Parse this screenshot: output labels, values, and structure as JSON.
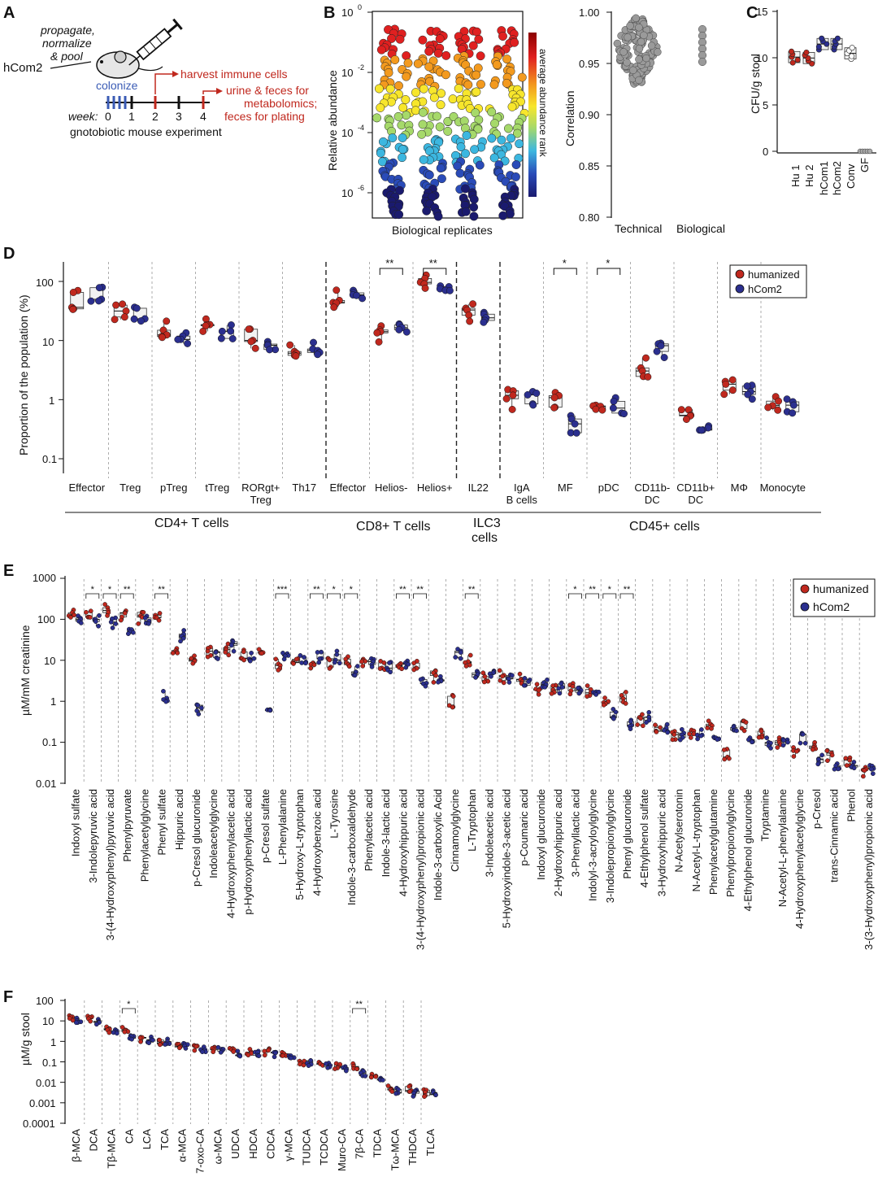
{
  "panels": {
    "A": "A",
    "B": "B",
    "C": "C",
    "D": "D",
    "E": "E",
    "F": "F"
  },
  "colors": {
    "humanized": "#c0281e",
    "hcom2": "#2b2f8f",
    "gray": "#9a9a9a"
  },
  "panelA": {
    "strain": "hCom2",
    "prep": [
      "propagate,",
      "normalize",
      "& pool"
    ],
    "colonize": "colonize",
    "harvest": "harvest immune cells",
    "urine": [
      "urine & feces for",
      "metabolomics;",
      "feces for plating"
    ],
    "week_label": "week:",
    "weeks": [
      "0",
      "1",
      "2",
      "3",
      "4"
    ],
    "caption": "gnotobiotic mouse experiment"
  },
  "panelB": {
    "ylabel": "Relative abundance",
    "xlabel": "Biological replicates",
    "colorbar_label": "average abundance rank",
    "yticks": [
      "10",
      "10",
      "10",
      "10"
    ],
    "yexp": [
      "0",
      "-2",
      "-4",
      "-6"
    ],
    "corr_ylabel": "Correlation",
    "corr_yticks": [
      "1.00",
      "0.95",
      "0.90",
      "0.85",
      "0.80"
    ],
    "corr_groups": [
      "Technical",
      "Biological"
    ]
  },
  "panelC": {
    "ylabel": "CFU/g stool",
    "yticks": [
      "15",
      "10",
      "5",
      "0"
    ],
    "groups": [
      "Hu 1",
      "Hu 2",
      "hCom1",
      "hCom2",
      "Conv",
      "GF"
    ],
    "chart_data": {
      "type": "box",
      "categories": [
        "Hu 1",
        "Hu 2",
        "hCom1",
        "hCom2",
        "Conv",
        "GF"
      ],
      "values": [
        10.1,
        10.0,
        11.5,
        11.5,
        10.5,
        0.0
      ],
      "ylim": [
        0,
        15
      ]
    }
  },
  "panelD": {
    "ylabel": "Proportion of the population (%)",
    "yticks": [
      "100",
      "10",
      "1",
      "0.1"
    ],
    "legend": [
      "humanized",
      "hCom2"
    ],
    "categories": [
      "Effector",
      "Treg",
      "pTreg",
      "tTreg",
      "RORgt+ Treg",
      "Th17",
      "Effector",
      "Helios-",
      "Helios+",
      "IL22",
      "IgA B cells",
      "MF",
      "pDC",
      "CD11b- DC",
      "CD11b+ DC",
      "MΦ",
      "Monocyte"
    ],
    "cat_lines": [
      [
        "Effector"
      ],
      [
        "Treg"
      ],
      [
        "pTreg"
      ],
      [
        "tTreg"
      ],
      [
        "RORgt+",
        "Treg"
      ],
      [
        "Th17"
      ],
      [
        "Effector"
      ],
      [
        "Helios-"
      ],
      [
        "Helios+"
      ],
      [
        "IL22"
      ],
      [
        "IgA",
        "B cells"
      ],
      [
        "MF"
      ],
      [
        "pDC"
      ],
      [
        "CD11b-",
        "DC"
      ],
      [
        "CD11b+",
        "DC"
      ],
      [
        "MΦ"
      ],
      [
        "Monocyte"
      ]
    ],
    "groups": [
      "CD4+ T cells",
      "CD8+ T cells",
      "ILC3",
      "cells",
      "CD45+ cells"
    ],
    "sig": [
      "**",
      "**",
      "*",
      "*"
    ],
    "chart_data": {
      "type": "box",
      "categories": [
        "Effector",
        "Treg",
        "pTreg",
        "tTreg",
        "RORgt+ Treg",
        "Th17",
        "Effector",
        "Helios-",
        "Helios+",
        "IL22",
        "IgA B cells",
        "MF",
        "pDC",
        "CD11b- DC",
        "CD11b+ DC",
        "MΦ",
        "Monocyte"
      ],
      "series": [
        {
          "name": "humanized",
          "values": [
            48,
            32,
            15,
            16,
            11,
            7,
            48,
            12,
            90,
            28,
            1.0,
            1.0,
            0.8,
            3.5,
            0.5,
            1.6,
            0.9
          ]
        },
        {
          "name": "hCom2",
          "values": [
            58,
            29,
            12,
            15,
            9.5,
            7.5,
            57,
            18,
            82,
            27,
            1.1,
            0.38,
            0.8,
            6.5,
            0.3,
            1.4,
            0.75
          ]
        }
      ],
      "ylim": [
        0.05,
        150
      ]
    }
  },
  "panelE": {
    "ylabel": "µM/mM creatinine",
    "yticks": [
      "1000",
      "100",
      "10",
      "1",
      "0.1",
      "0.01"
    ],
    "legend": [
      "humanized",
      "hCom2"
    ],
    "labels": [
      "Indoxyl sulfate",
      "3-Indolepyruvic acid",
      "3-(4-Hydroxyphenyl)pyruvic acid",
      "Phenylpyruvate",
      "Phenylacetylglycine",
      "Phenyl sulfate",
      "Hippuric acid",
      "p-Cresol glucuronide",
      "Indoleacetylglycine",
      "4-Hydroxyphenylacetic acid",
      "p-Hydroxyphenyllactic acid",
      "p-Cresol sulfate",
      "L-Phenylalanine",
      "5-Hydroxy-L-tryptophan",
      "4-Hydroxybenzoic acid",
      "L-Tyrosine",
      "Indole-3-carboxaldehyde",
      "Phenylacetic acid",
      "Indole-3-lactic acid",
      "4-Hydroxyhippuric acid",
      "3-(4-Hydroxyphenyl)propionic acid",
      "Indole-3-carboxylic Acid",
      "Cinnamoylglycine",
      "L-Tryptophan",
      "3-Indoleacetic acid",
      "5-Hydroxyindole-3-acetic acid",
      "p-Coumaric acid",
      "Indoxyl glucuronide",
      "2-Hydroxyhippuric acid",
      "3-Phenyllactic acid",
      "Indolyl-3-acryloylglycine",
      "3-Indolepropionylglycine",
      "Phenyl glucuronide",
      "4-Ethylphenol sulfate",
      "3-Hydroxyhippuric acid",
      "N-Acetylserotonin",
      "N-Acetyl-L-tryptophan",
      "Phenylacetylglutamine",
      "Phenylpropionylglycine",
      "4-Ethylphenol glucuronide",
      "Tryptamine",
      "N-Acetyl-L-phenylalanine",
      "4-Hydroxyphenylacetylglycine",
      "p-Cresol",
      "trans-Cinnamic acid",
      "Phenol",
      "3-(3-Hydroxyphenyl)propionic acid"
    ],
    "sig": [
      {
        "i": 1,
        "t": "*"
      },
      {
        "i": 2,
        "t": "*"
      },
      {
        "i": 3,
        "t": "**"
      },
      {
        "i": 5,
        "t": "**"
      },
      {
        "i": 12,
        "t": "***"
      },
      {
        "i": 14,
        "t": "**"
      },
      {
        "i": 15,
        "t": "*"
      },
      {
        "i": 16,
        "t": "*"
      },
      {
        "i": 19,
        "t": "**"
      },
      {
        "i": 20,
        "t": "**"
      },
      {
        "i": 23,
        "t": "**"
      },
      {
        "i": 29,
        "t": "*"
      },
      {
        "i": 30,
        "t": "**"
      },
      {
        "i": 31,
        "t": "*"
      },
      {
        "i": 32,
        "t": "**"
      }
    ],
    "chart_data": {
      "type": "box",
      "categories": [
        "Indoxyl sulfate",
        "3-Indolepyruvic acid",
        "3-(4-Hydroxyphenyl)pyruvic acid",
        "Phenylpyruvate",
        "Phenylacetylglycine",
        "Phenyl sulfate",
        "Hippuric acid",
        "p-Cresol glucuronide",
        "Indoleacetylglycine",
        "4-Hydroxyphenylacetic acid",
        "p-Hydroxyphenyllactic acid",
        "p-Cresol sulfate",
        "L-Phenylalanine",
        "5-Hydroxy-L-tryptophan",
        "4-Hydroxybenzoic acid",
        "L-Tyrosine",
        "Indole-3-carboxaldehyde",
        "Phenylacetic acid",
        "Indole-3-lactic acid",
        "4-Hydroxyhippuric acid",
        "3-(4-Hydroxyphenyl)propionic acid",
        "Indole-3-carboxylic Acid",
        "Cinnamoylglycine",
        "L-Tryptophan",
        "3-Indoleacetic acid",
        "5-Hydroxyindole-3-acetic acid",
        "p-Coumaric acid",
        "Indoxyl glucuronide",
        "2-Hydroxyhippuric acid",
        "3-Phenyllactic acid",
        "Indolyl-3-acryloylglycine",
        "3-Indolepropionylglycine",
        "Phenyl glucuronide",
        "4-Ethylphenol sulfate",
        "3-Hydroxyhippuric acid",
        "N-Acetylserotonin",
        "N-Acetyl-L-tryptophan",
        "Phenylacetylglutamine",
        "Phenylpropionylglycine",
        "4-Ethylphenol glucuronide",
        "Tryptamine",
        "N-Acetyl-L-phenylalanine",
        "4-Hydroxyphenylacetylglycine",
        "p-Cresol",
        "trans-Cinnamic acid",
        "Phenol",
        "3-(3-Hydroxyphenyl)propionic acid"
      ],
      "series": [
        {
          "name": "humanized",
          "values": [
            150,
            150,
            170,
            120,
            110,
            100,
            20,
            10,
            17,
            18,
            14,
            15,
            8,
            11,
            9,
            8,
            10,
            8,
            8,
            6,
            7,
            4,
            1,
            10,
            4,
            4,
            3.5,
            2,
            1.8,
            2,
            1.8,
            1,
            1.2,
            0.35,
            0.25,
            0.15,
            0.15,
            0.25,
            0.05,
            0.25,
            0.18,
            0.1,
            0.06,
            0.08,
            0.05,
            0.03,
            0.02
          ]
        },
        {
          "name": "hCom2",
          "values": [
            100,
            95,
            80,
            60,
            90,
            1.3,
            40,
            0.6,
            15,
            22,
            13,
            0.5,
            15,
            11,
            12,
            12,
            6,
            9,
            7,
            8,
            3,
            4,
            15,
            5,
            4.5,
            3.5,
            3,
            2.5,
            2,
            2,
            1.5,
            0.5,
            0.25,
            0.4,
            0.2,
            0.15,
            0.15,
            0.15,
            0.2,
            0.1,
            0.1,
            0.1,
            0.12,
            0.04,
            0.03,
            0.03,
            0.02
          ]
        }
      ],
      "ylim": [
        0.01,
        1000
      ]
    }
  },
  "panelF": {
    "ylabel": "µM/g stool",
    "yticks": [
      "100",
      "10",
      "1",
      "0.1",
      "0.01",
      "0.001",
      "0.0001"
    ],
    "labels": [
      "β-MCA",
      "DCA",
      "Tβ-MCA",
      "CA",
      "LCA",
      "TCA",
      "α-MCA",
      "7-oxo-CA",
      "ω-MCA",
      "UDCA",
      "HDCA",
      "CDCA",
      "γ-MCA",
      "TUDCA",
      "TCDCA",
      "Muro-CA",
      "7β-CA",
      "TDCA",
      "Tω-MCA",
      "THDCA",
      "TLCA"
    ],
    "sig": [
      {
        "i": 3,
        "t": "*"
      },
      {
        "i": 16,
        "t": "**"
      }
    ],
    "chart_data": {
      "type": "box",
      "categories": [
        "β-MCA",
        "DCA",
        "Tβ-MCA",
        "CA",
        "LCA",
        "TCA",
        "α-MCA",
        "7-oxo-CA",
        "ω-MCA",
        "UDCA",
        "HDCA",
        "CDCA",
        "γ-MCA",
        "TUDCA",
        "TCDCA",
        "Muro-CA",
        "7β-CA",
        "TDCA",
        "Tω-MCA",
        "THDCA",
        "TLCA"
      ],
      "series": [
        {
          "name": "humanized",
          "values": [
            15,
            12,
            4,
            4,
            1.3,
            1,
            0.7,
            0.5,
            0.4,
            0.4,
            0.3,
            0.3,
            0.2,
            0.1,
            0.08,
            0.06,
            0.06,
            0.02,
            0.005,
            0.005,
            0.003
          ]
        },
        {
          "name": "hCom2",
          "values": [
            12,
            10,
            3,
            1.5,
            1.2,
            0.9,
            0.6,
            0.4,
            0.35,
            0.25,
            0.25,
            0.2,
            0.15,
            0.09,
            0.07,
            0.05,
            0.03,
            0.015,
            0.004,
            0.003,
            0.003
          ]
        }
      ],
      "ylim": [
        0.0001,
        100
      ]
    }
  }
}
